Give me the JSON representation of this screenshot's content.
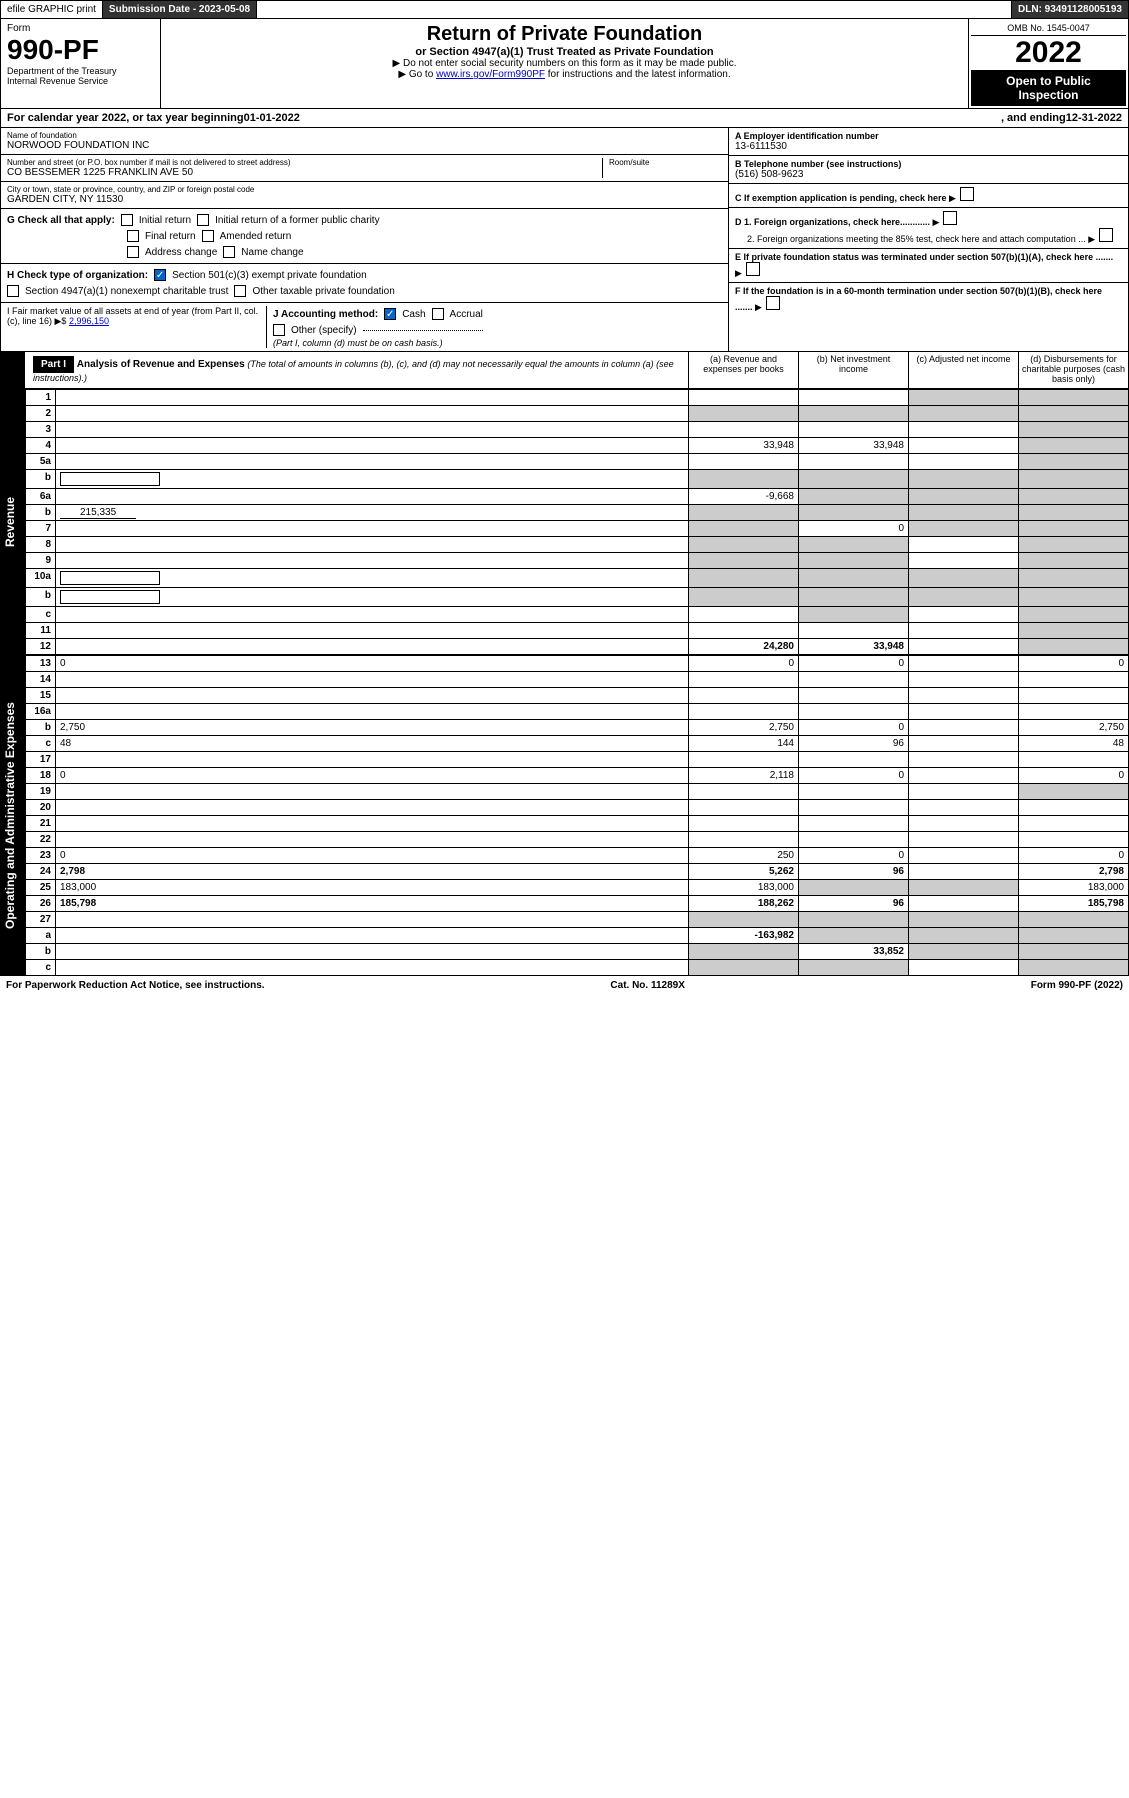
{
  "topbar": {
    "efile": "efile GRAPHIC print",
    "submission_label": "Submission Date - 2023-05-08",
    "dln_label": "DLN: 93491128005193"
  },
  "header": {
    "form_word": "Form",
    "form_number": "990-PF",
    "dept": "Department of the Treasury",
    "irs": "Internal Revenue Service",
    "title": "Return of Private Foundation",
    "subtitle": "or Section 4947(a)(1) Trust Treated as Private Foundation",
    "instr1": "▶ Do not enter social security numbers on this form as it may be made public.",
    "instr2_prefix": "▶ Go to ",
    "instr2_link": "www.irs.gov/Form990PF",
    "instr2_suffix": " for instructions and the latest information.",
    "omb": "OMB No. 1545-0047",
    "year": "2022",
    "open": "Open to Public Inspection"
  },
  "calyear": {
    "prefix": "For calendar year 2022, or tax year beginning ",
    "begin": "01-01-2022",
    "mid": ", and ending ",
    "end": "12-31-2022"
  },
  "entity": {
    "name_label": "Name of foundation",
    "name": "NORWOOD FOUNDATION INC",
    "addr_label": "Number and street (or P.O. box number if mail is not delivered to street address)",
    "addr": "CO BESSEMER 1225 FRANKLIN AVE 50",
    "room_label": "Room/suite",
    "city_label": "City or town, state or province, country, and ZIP or foreign postal code",
    "city": "GARDEN CITY, NY  11530",
    "ein_label": "A Employer identification number",
    "ein": "13-6111530",
    "phone_label": "B Telephone number (see instructions)",
    "phone": "(516) 508-9623",
    "c_label": "C If exemption application is pending, check here",
    "d1_label": "D 1. Foreign organizations, check here............",
    "d2_label": "2. Foreign organizations meeting the 85% test, check here and attach computation ...",
    "e_label": "E If private foundation status was terminated under section 507(b)(1)(A), check here .......",
    "f_label": "F If the foundation is in a 60-month termination under section 507(b)(1)(B), check here .......",
    "g_label": "G Check all that apply:",
    "g_opts": [
      "Initial return",
      "Initial return of a former public charity",
      "Final return",
      "Amended return",
      "Address change",
      "Name change"
    ],
    "h_label": "H Check type of organization:",
    "h_opt1": "Section 501(c)(3) exempt private foundation",
    "h_opt2": "Section 4947(a)(1) nonexempt charitable trust",
    "h_opt3": "Other taxable private foundation",
    "i_label": "I Fair market value of all assets at end of year (from Part II, col. (c), line 16) ▶$",
    "i_val": "2,996,150",
    "j_label": "J Accounting method:",
    "j_cash": "Cash",
    "j_accrual": "Accrual",
    "j_other": "Other (specify)",
    "j_note": "(Part I, column (d) must be on cash basis.)"
  },
  "part1": {
    "label": "Part I",
    "title": "Analysis of Revenue and Expenses",
    "title_note": "(The total of amounts in columns (b), (c), and (d) may not necessarily equal the amounts in column (a) (see instructions).)",
    "col_a": "(a) Revenue and expenses per books",
    "col_b": "(b) Net investment income",
    "col_c": "(c) Adjusted net income",
    "col_d": "(d) Disbursements for charitable purposes (cash basis only)"
  },
  "side_labels": {
    "revenue": "Revenue",
    "expenses": "Operating and Administrative Expenses"
  },
  "rows": [
    {
      "n": "1",
      "d": "",
      "a": "",
      "b": "",
      "c": "",
      "grey_c": true,
      "grey_d": true
    },
    {
      "n": "2",
      "d": "",
      "a": "",
      "b": "",
      "c": "",
      "grey_all": true
    },
    {
      "n": "3",
      "d": "",
      "a": "",
      "b": "",
      "c": "",
      "grey_d": true
    },
    {
      "n": "4",
      "d": "",
      "a": "33,948",
      "b": "33,948",
      "c": "",
      "grey_d": true
    },
    {
      "n": "5a",
      "d": "",
      "a": "",
      "b": "",
      "c": "",
      "grey_d": true
    },
    {
      "n": "b",
      "d": "",
      "a": "",
      "b": "",
      "c": "",
      "grey_all": true,
      "inline_box": true
    },
    {
      "n": "6a",
      "d": "",
      "a": "-9,668",
      "b": "",
      "c": "",
      "grey_b": true,
      "grey_c": true,
      "grey_d": true
    },
    {
      "n": "b",
      "d": "",
      "a": "",
      "b": "",
      "c": "",
      "inline_val": "215,335",
      "grey_all": true
    },
    {
      "n": "7",
      "d": "",
      "a": "",
      "b": "0",
      "c": "",
      "grey_a": true,
      "grey_c": true,
      "grey_d": true
    },
    {
      "n": "8",
      "d": "",
      "a": "",
      "b": "",
      "c": "",
      "grey_a": true,
      "grey_b": true,
      "grey_d": true
    },
    {
      "n": "9",
      "d": "",
      "a": "",
      "b": "",
      "c": "",
      "grey_a": true,
      "grey_b": true,
      "grey_d": true
    },
    {
      "n": "10a",
      "d": "",
      "a": "",
      "b": "",
      "c": "",
      "grey_all": true,
      "inline_box": true
    },
    {
      "n": "b",
      "d": "",
      "a": "",
      "b": "",
      "c": "",
      "grey_all": true,
      "inline_box": true
    },
    {
      "n": "c",
      "d": "",
      "a": "",
      "b": "",
      "c": "",
      "grey_b": true,
      "grey_d": true
    },
    {
      "n": "11",
      "d": "",
      "a": "",
      "b": "",
      "c": "",
      "grey_d": true
    },
    {
      "n": "12",
      "d": "",
      "a": "24,280",
      "b": "33,948",
      "c": "",
      "bold": true,
      "grey_d": true
    },
    {
      "n": "13",
      "d": "0",
      "a": "0",
      "b": "0",
      "c": ""
    },
    {
      "n": "14",
      "d": "",
      "a": "",
      "b": "",
      "c": ""
    },
    {
      "n": "15",
      "d": "",
      "a": "",
      "b": "",
      "c": ""
    },
    {
      "n": "16a",
      "d": "",
      "a": "",
      "b": "",
      "c": ""
    },
    {
      "n": "b",
      "d": "2,750",
      "a": "2,750",
      "b": "0",
      "c": ""
    },
    {
      "n": "c",
      "d": "48",
      "a": "144",
      "b": "96",
      "c": ""
    },
    {
      "n": "17",
      "d": "",
      "a": "",
      "b": "",
      "c": ""
    },
    {
      "n": "18",
      "d": "0",
      "a": "2,118",
      "b": "0",
      "c": ""
    },
    {
      "n": "19",
      "d": "",
      "a": "",
      "b": "",
      "c": "",
      "grey_d": true
    },
    {
      "n": "20",
      "d": "",
      "a": "",
      "b": "",
      "c": ""
    },
    {
      "n": "21",
      "d": "",
      "a": "",
      "b": "",
      "c": ""
    },
    {
      "n": "22",
      "d": "",
      "a": "",
      "b": "",
      "c": ""
    },
    {
      "n": "23",
      "d": "0",
      "a": "250",
      "b": "0",
      "c": ""
    },
    {
      "n": "24",
      "d": "2,798",
      "a": "5,262",
      "b": "96",
      "c": "",
      "bold": true
    },
    {
      "n": "25",
      "d": "183,000",
      "a": "183,000",
      "b": "",
      "c": "",
      "grey_b": true,
      "grey_c": true
    },
    {
      "n": "26",
      "d": "185,798",
      "a": "188,262",
      "b": "96",
      "c": "",
      "bold": true
    },
    {
      "n": "27",
      "d": "",
      "a": "",
      "b": "",
      "c": "",
      "grey_all": true
    },
    {
      "n": "a",
      "d": "",
      "a": "-163,982",
      "b": "",
      "c": "",
      "bold": true,
      "grey_b": true,
      "grey_c": true,
      "grey_d": true
    },
    {
      "n": "b",
      "d": "",
      "a": "",
      "b": "33,852",
      "c": "",
      "bold": true,
      "grey_a": true,
      "grey_c": true,
      "grey_d": true
    },
    {
      "n": "c",
      "d": "",
      "a": "",
      "b": "",
      "c": "",
      "bold": true,
      "grey_a": true,
      "grey_b": true,
      "grey_d": true
    }
  ],
  "footer": {
    "left": "For Paperwork Reduction Act Notice, see instructions.",
    "mid": "Cat. No. 11289X",
    "right": "Form 990-PF (2022)"
  }
}
